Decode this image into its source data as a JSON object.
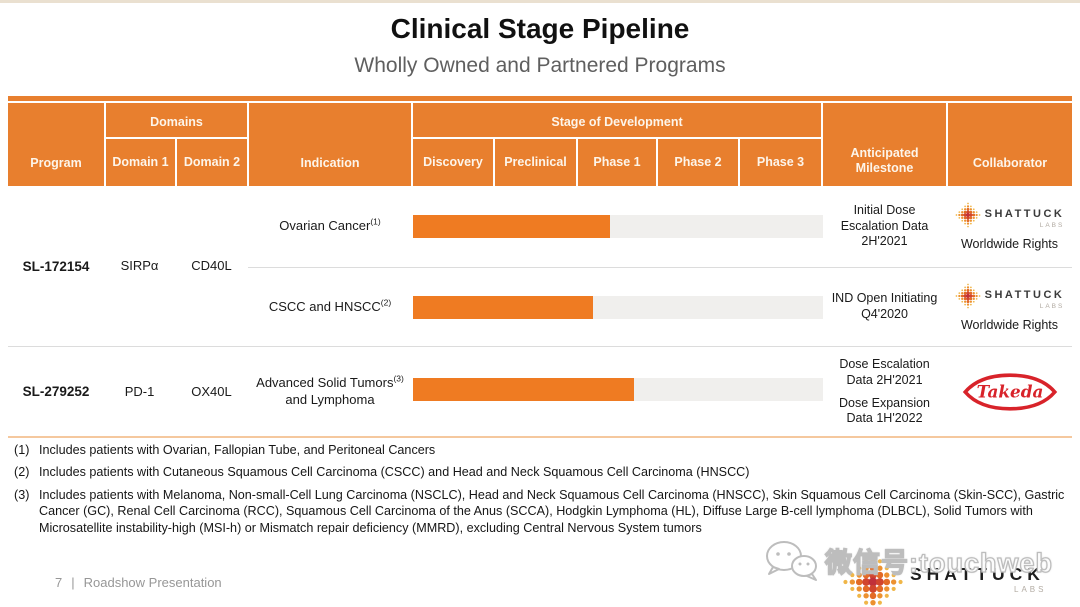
{
  "slide": {
    "title": "Clinical Stage Pipeline",
    "subtitle": "Wholly Owned and Partnered Programs"
  },
  "table": {
    "headers": {
      "program": "Program",
      "domains_group": "Domains",
      "domain1": "Domain 1",
      "domain2": "Domain 2",
      "indication": "Indication",
      "stage_group": "Stage of Development",
      "stage1": "Discovery",
      "stage2": "Preclinical",
      "stage3": "Phase 1",
      "stage4": "Phase 2",
      "stage5": "Phase 3",
      "milestone": "Anticipated Milestone",
      "collaborator": "Collaborator"
    }
  },
  "programs": [
    {
      "program": "SL-172154",
      "domain1": "SIRPα",
      "domain2": "CD40L",
      "rows": [
        {
          "indication": "Ovarian Cancer",
          "footnote_ref": "(1)",
          "stage_reached": "Phase 1",
          "progress_pct": 48,
          "milestones": [
            "Initial Dose Escalation Data 2H'2021"
          ],
          "collaborator": "Shattuck Labs",
          "rights": "Worldwide Rights"
        },
        {
          "indication": "CSCC and HNSCC",
          "footnote_ref": "(2)",
          "stage_reached": "Phase 1",
          "progress_pct": 44,
          "milestones": [
            "IND Open Initiating Q4'2020"
          ],
          "collaborator": "Shattuck Labs",
          "rights": "Worldwide Rights"
        }
      ]
    },
    {
      "program": "SL-279252",
      "domain1": "PD-1",
      "domain2": "OX40L",
      "rows": [
        {
          "indication": "Advanced Solid Tumors and Lymphoma",
          "indication_line1": "Advanced Solid Tumors",
          "indication_line2": "and Lymphoma",
          "footnote_ref": "(3)",
          "stage_reached": "Phase 1",
          "progress_pct": 54,
          "milestones": [
            "Dose Escalation Data 2H'2021",
            "Dose Expansion Data 1H'2022"
          ],
          "collaborator": "Takeda",
          "rights": ""
        }
      ]
    }
  ],
  "footnotes": [
    {
      "mark": "(1)",
      "text": "Includes patients with Ovarian, Fallopian Tube, and Peritoneal Cancers"
    },
    {
      "mark": "(2)",
      "text": "Includes patients with Cutaneous Squamous Cell Carcinoma (CSCC) and Head and Neck Squamous Cell Carcinoma (HNSCC)"
    },
    {
      "mark": "(3)",
      "text": "Includes patients with Melanoma, Non-small-Cell Lung Carcinoma (NSCLC), Head and Neck Squamous Cell Carcinoma (HNSCC), Skin Squamous Cell Carcinoma (Skin-SCC), Gastric Cancer (GC), Renal Cell Carcinoma (RCC), Squamous Cell Carcinoma of the Anus (SCCA), Hodgkin Lymphoma (HL), Diffuse Large B-cell lymphoma (DLBCL), Solid Tumors with Microsatellite instability-high (MSI-h) or Mismatch repair deficiency (MMRD), excluding Central Nervous System tumors"
    }
  ],
  "footer": {
    "page_number": "7",
    "separator": "|",
    "label": "Roadshow Presentation"
  },
  "watermark": "微信号:touchweb",
  "logos": {
    "shattuck_name": "SHATTUCK",
    "shattuck_sub": "LABS",
    "takeda": "Takeda"
  },
  "colors": {
    "header_orange": "#e87f2e",
    "bar_orange": "#ef7b22",
    "bar_track": "#f0efed",
    "table_bottom_border": "#f5c89e",
    "takeda_red": "#d8232a",
    "subtitle_gray": "#5f5f5f",
    "footer_gray": "#979797"
  },
  "chart_data": {
    "type": "bar",
    "title": "Clinical Stage Pipeline — Wholly Owned and Partnered Programs",
    "categories": [
      "SL-172154 (SIRPα/CD40L) — Ovarian Cancer",
      "SL-172154 (SIRPα/CD40L) — CSCC and HNSCC",
      "SL-279252 (PD-1/OX40L) — Advanced Solid Tumors and Lymphoma"
    ],
    "values": [
      48,
      44,
      54
    ],
    "value_meaning": "percent of Discovery→Phase 3 development axis filled",
    "stage_axis": [
      "Discovery",
      "Preclinical",
      "Phase 1",
      "Phase 2",
      "Phase 3"
    ],
    "stage_reached": [
      "Phase 1",
      "Phase 1",
      "Phase 1"
    ],
    "xlabel": "Stage of Development",
    "ylabel": "",
    "xlim": [
      0,
      100
    ],
    "legend_position": "none",
    "grid": false
  }
}
